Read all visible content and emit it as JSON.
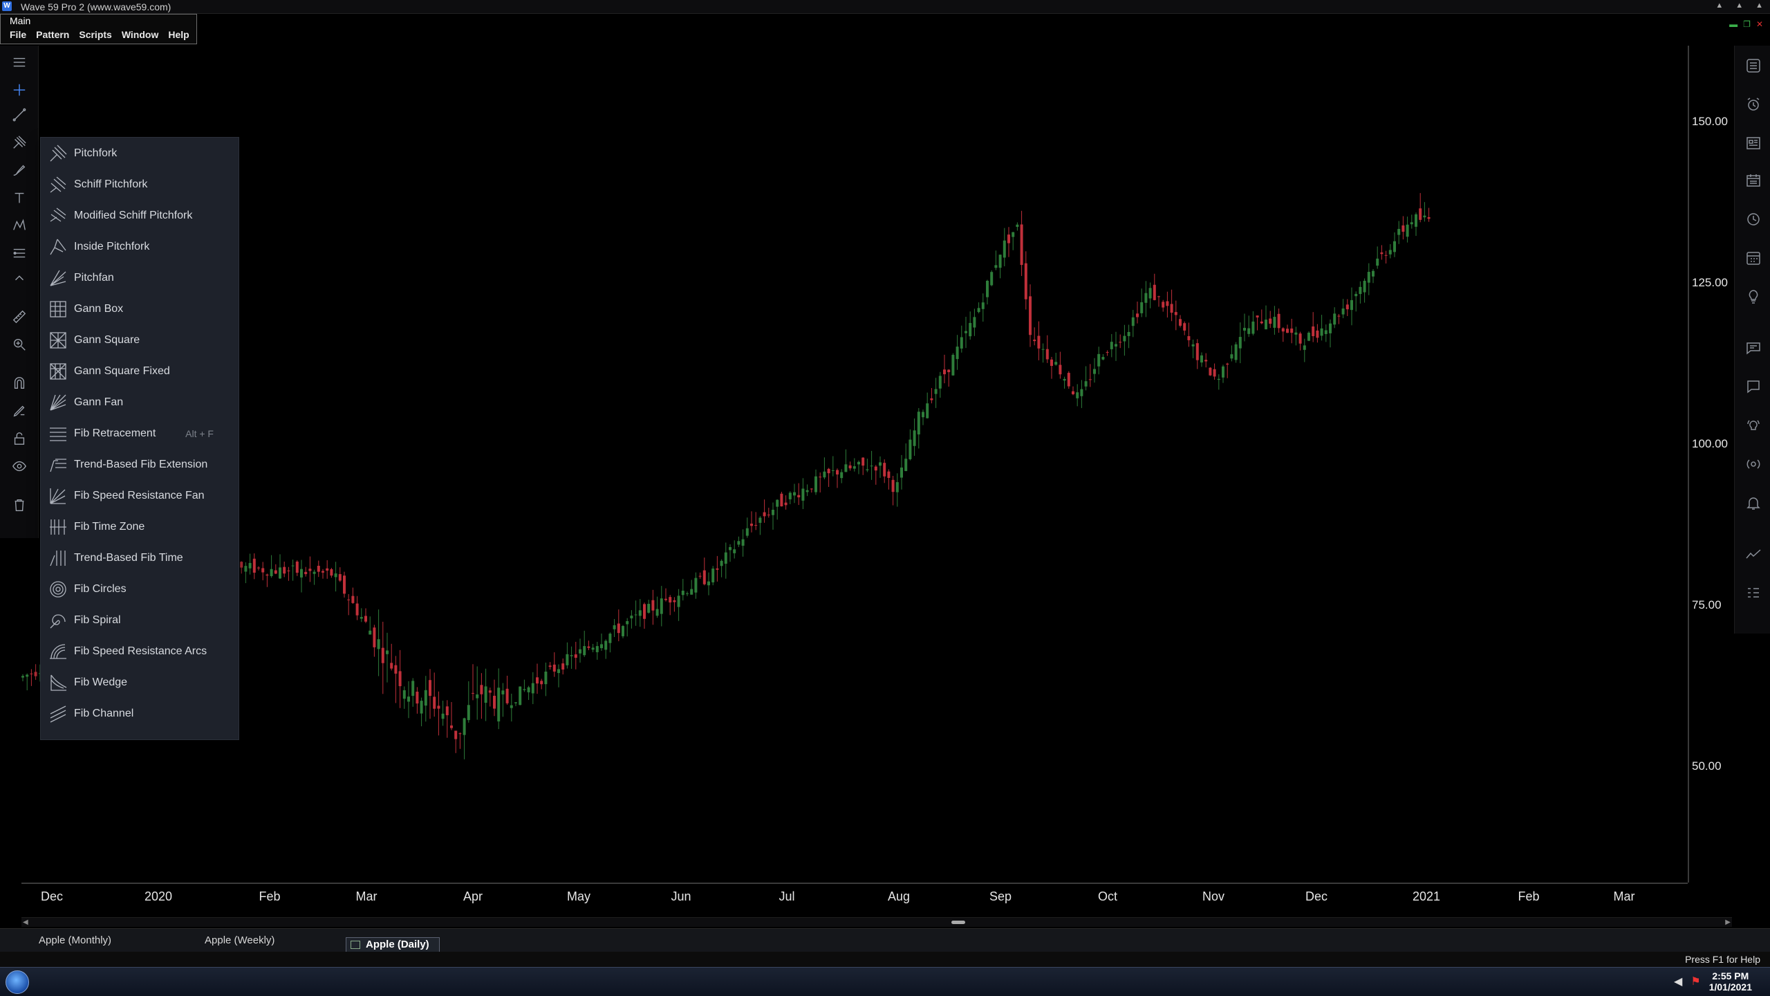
{
  "window": {
    "title": "Wave 59 Pro 2  (www.wave59.com)",
    "app_icon": "W",
    "main_label": "Main"
  },
  "menu": [
    "File",
    "Pattern",
    "Scripts",
    "Window",
    "Help"
  ],
  "chart": {
    "price_labels": [
      "150.00",
      "125.00",
      "100.00",
      "75.00",
      "50.00"
    ],
    "time_labels": [
      "Dec",
      "2020",
      "Feb",
      "Mar",
      "Apr",
      "May",
      "Jun",
      "Jul",
      "Aug",
      "Sep",
      "Oct",
      "Nov",
      "Dec",
      "2021",
      "Feb",
      "Mar"
    ],
    "up_color": "#2e7d3a",
    "down_color": "#c0303a"
  },
  "tool_menu": {
    "items": [
      {
        "label": "Pitchfork",
        "icon": "pitchfork-icon"
      },
      {
        "label": "Schiff Pitchfork",
        "icon": "schiff-pitchfork-icon"
      },
      {
        "label": "Modified Schiff Pitchfork",
        "icon": "modified-schiff-pitchfork-icon"
      },
      {
        "label": "Inside Pitchfork",
        "icon": "inside-pitchfork-icon"
      },
      {
        "label": "Pitchfan",
        "icon": "pitchfan-icon"
      },
      {
        "label": "Gann Box",
        "icon": "gann-box-icon"
      },
      {
        "label": "Gann Square",
        "icon": "gann-square-icon"
      },
      {
        "label": "Gann Square Fixed",
        "icon": "gann-square-fixed-icon"
      },
      {
        "label": "Gann Fan",
        "icon": "gann-fan-icon"
      },
      {
        "label": "Fib Retracement",
        "icon": "fib-retracement-icon",
        "shortcut": "Alt + F"
      },
      {
        "label": "Trend-Based Fib Extension",
        "icon": "trend-fib-extension-icon"
      },
      {
        "label": "Fib Speed Resistance Fan",
        "icon": "fib-speed-fan-icon"
      },
      {
        "label": "Fib Time Zone",
        "icon": "fib-time-zone-icon"
      },
      {
        "label": "Trend-Based Fib Time",
        "icon": "trend-fib-time-icon"
      },
      {
        "label": "Fib Circles",
        "icon": "fib-circles-icon"
      },
      {
        "label": "Fib Spiral",
        "icon": "fib-spiral-icon"
      },
      {
        "label": "Fib Speed Resistance Arcs",
        "icon": "fib-speed-arcs-icon"
      },
      {
        "label": "Fib Wedge",
        "icon": "fib-wedge-icon"
      },
      {
        "label": "Fib Channel",
        "icon": "fib-channel-icon"
      }
    ]
  },
  "tabs": [
    "Apple (Monthly)",
    "Apple (Weekly)",
    "Apple (Daily)"
  ],
  "status": {
    "help_text": "Press F1 for Help"
  },
  "taskbar": {
    "time": "2:55 PM",
    "date": "1/01/2021"
  }
}
